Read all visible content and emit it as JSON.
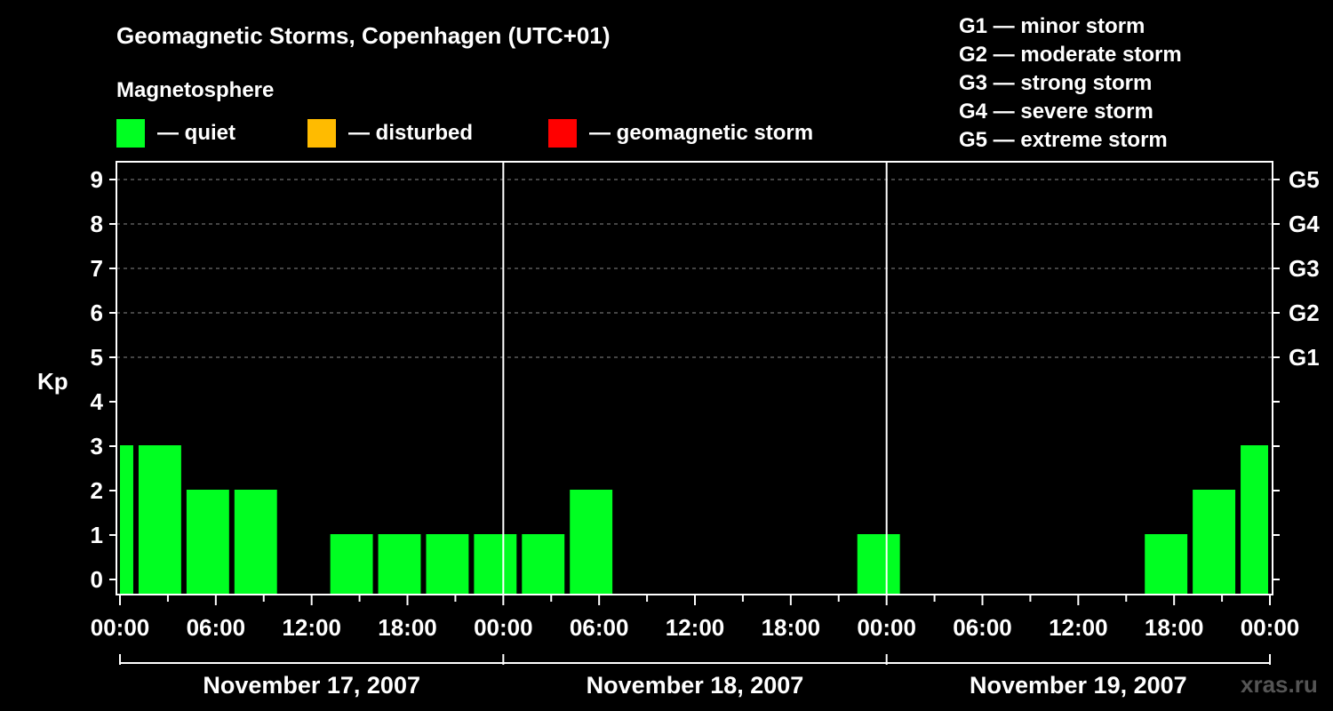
{
  "colors": {
    "quiet": "#00ff22",
    "disturbed": "#ffbb00",
    "storm": "#ff0000",
    "background": "#000000",
    "foreground": "#ffffff",
    "grid": "#888888"
  },
  "watermark": "xras.ru",
  "chart_data": {
    "type": "bar",
    "title": "Geomagnetic Storms, Copenhagen (UTC+01)",
    "subtitle": "Magnetosphere",
    "ylabel": "Kp",
    "ylim": [
      -0.3,
      9.7
    ],
    "yticks": [
      "0",
      "1",
      "2",
      "3",
      "4",
      "5",
      "6",
      "7",
      "8",
      "9"
    ],
    "storm_scale_ticks": [
      {
        "kp": 5,
        "label": "G1"
      },
      {
        "kp": 6,
        "label": "G2"
      },
      {
        "kp": 7,
        "label": "G3"
      },
      {
        "kp": 8,
        "label": "G4"
      },
      {
        "kp": 9,
        "label": "G5"
      }
    ],
    "storm_scale_legend": [
      "G1 — minor storm",
      "G2 — moderate storm",
      "G3 — strong storm",
      "G4 — severe storm",
      "G5 — extreme storm"
    ],
    "legend": [
      {
        "key": "quiet",
        "label": "— quiet"
      },
      {
        "key": "disturbed",
        "label": "— disturbed"
      },
      {
        "key": "storm",
        "label": "— geomagnetic storm"
      }
    ],
    "xlim_hours": [
      0,
      72
    ],
    "xticks": [
      {
        "hour": 0,
        "label": "00:00"
      },
      {
        "hour": 6,
        "label": "06:00"
      },
      {
        "hour": 12,
        "label": "12:00"
      },
      {
        "hour": 18,
        "label": "18:00"
      },
      {
        "hour": 24,
        "label": "00:00"
      },
      {
        "hour": 30,
        "label": "06:00"
      },
      {
        "hour": 36,
        "label": "12:00"
      },
      {
        "hour": 42,
        "label": "18:00"
      },
      {
        "hour": 48,
        "label": "00:00"
      },
      {
        "hour": 54,
        "label": "06:00"
      },
      {
        "hour": 60,
        "label": "12:00"
      },
      {
        "hour": 66,
        "label": "18:00"
      },
      {
        "hour": 72,
        "label": "00:00"
      }
    ],
    "days": [
      "November 17, 2007",
      "November 18, 2007",
      "November 19, 2007"
    ],
    "bars": [
      {
        "start": 0,
        "end": 1,
        "kp": 3,
        "level": "quiet"
      },
      {
        "start": 1,
        "end": 4,
        "kp": 3,
        "level": "quiet"
      },
      {
        "start": 4,
        "end": 7,
        "kp": 2,
        "level": "quiet"
      },
      {
        "start": 7,
        "end": 10,
        "kp": 2,
        "level": "quiet"
      },
      {
        "start": 10,
        "end": 13,
        "kp": 0,
        "level": "quiet"
      },
      {
        "start": 13,
        "end": 16,
        "kp": 1,
        "level": "quiet"
      },
      {
        "start": 16,
        "end": 19,
        "kp": 1,
        "level": "quiet"
      },
      {
        "start": 19,
        "end": 22,
        "kp": 1,
        "level": "quiet"
      },
      {
        "start": 22,
        "end": 25,
        "kp": 1,
        "level": "quiet"
      },
      {
        "start": 25,
        "end": 28,
        "kp": 1,
        "level": "quiet"
      },
      {
        "start": 28,
        "end": 31,
        "kp": 2,
        "level": "quiet"
      },
      {
        "start": 31,
        "end": 34,
        "kp": 0,
        "level": "quiet"
      },
      {
        "start": 34,
        "end": 37,
        "kp": 0,
        "level": "quiet"
      },
      {
        "start": 37,
        "end": 40,
        "kp": 0,
        "level": "quiet"
      },
      {
        "start": 40,
        "end": 43,
        "kp": 0,
        "level": "quiet"
      },
      {
        "start": 43,
        "end": 46,
        "kp": 0,
        "level": "quiet"
      },
      {
        "start": 46,
        "end": 49,
        "kp": 1,
        "level": "quiet"
      },
      {
        "start": 49,
        "end": 52,
        "kp": 0,
        "level": "quiet"
      },
      {
        "start": 52,
        "end": 55,
        "kp": 0,
        "level": "quiet"
      },
      {
        "start": 55,
        "end": 58,
        "kp": 0,
        "level": "quiet"
      },
      {
        "start": 58,
        "end": 61,
        "kp": 0,
        "level": "quiet"
      },
      {
        "start": 61,
        "end": 64,
        "kp": 0,
        "level": "quiet"
      },
      {
        "start": 64,
        "end": 67,
        "kp": 1,
        "level": "quiet"
      },
      {
        "start": 67,
        "end": 70,
        "kp": 2,
        "level": "quiet"
      },
      {
        "start": 70,
        "end": 72,
        "kp": 3,
        "level": "quiet"
      }
    ]
  }
}
